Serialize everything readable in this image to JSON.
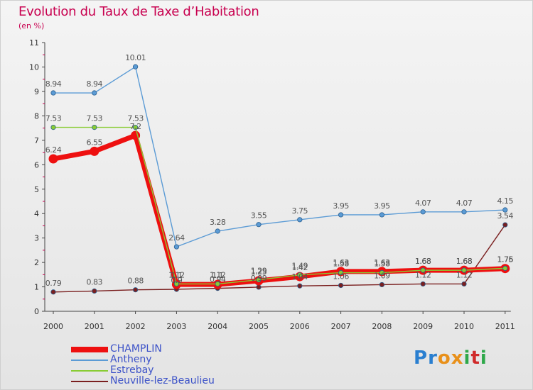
{
  "title": "Evolution du Taux de Taxe d’Habitation",
  "unit": "(en %)",
  "logo": {
    "letters": [
      "P",
      "r",
      "o",
      "x",
      "i",
      "t",
      "i"
    ],
    "colors": [
      "#2a7fd0",
      "#2a7fd0",
      "#e8901a",
      "#e8901a",
      "#2ea84a",
      "#d02a2a",
      "#2ea84a"
    ]
  },
  "chart_data": {
    "type": "line",
    "title": "Evolution du Taux de Taxe d’Habitation",
    "ylabel": "(en %)",
    "xlabel": "",
    "x": [
      "2000",
      "2001",
      "2002",
      "2003",
      "2004",
      "2005",
      "2006",
      "2007",
      "2008",
      "2009",
      "2010",
      "2011"
    ],
    "ylim": [
      0,
      11
    ],
    "yticks": [
      "0",
      "1",
      "2",
      "3",
      "4",
      "5",
      "6",
      "7",
      "8",
      "9",
      "10",
      "11"
    ],
    "grid": false,
    "legend_position": "bottom-left",
    "series": [
      {
        "name": "CHAMPLIN",
        "color": "#ee1010",
        "values": [
          6.24,
          6.55,
          7.2,
          1.1,
          1.1,
          1.25,
          1.42,
          1.63,
          1.63,
          1.68,
          1.68,
          1.75
        ],
        "labels": [
          "6.24",
          "6.55",
          "7.2",
          "1.1",
          "1.1",
          "1.25",
          "1.42",
          "1.63",
          "1.63",
          "1.68",
          "1.68",
          "1.75"
        ]
      },
      {
        "name": "Antheny",
        "color": "#5b9bd5",
        "values": [
          8.94,
          8.94,
          10.01,
          2.64,
          3.28,
          3.55,
          3.75,
          3.95,
          3.95,
          4.07,
          4.07,
          4.15
        ],
        "labels": [
          "8.94",
          "8.94",
          "10.01",
          "2.64",
          "3.28",
          "3.55",
          "3.75",
          "3.95",
          "3.95",
          "4.07",
          "4.07",
          "4.15"
        ]
      },
      {
        "name": "Estrebay",
        "color": "#88cc33",
        "values": [
          7.53,
          7.53,
          7.53,
          1.12,
          1.12,
          1.29,
          1.49,
          1.58,
          1.58,
          1.68,
          1.68,
          1.76
        ],
        "labels": [
          "7.53",
          "7.53",
          "7.53",
          "1.12",
          "1.12",
          "1.29",
          "1.49",
          "1.58",
          "1.58",
          "1.68",
          "1.68",
          "1.76"
        ]
      },
      {
        "name": "Neuville-lez-Beaulieu",
        "color": "#7a1f1f",
        "values": [
          0.79,
          0.83,
          0.88,
          0.9,
          0.94,
          0.99,
          1.04,
          1.06,
          1.09,
          1.12,
          1.12,
          3.54
        ],
        "labels": [
          "0.79",
          "0.83",
          "0.88",
          "0.9",
          "0.94",
          "0.99",
          "1.04",
          "1.06",
          "1.09",
          "1.12",
          "1.12",
          "3.54"
        ]
      }
    ]
  },
  "legend": [
    {
      "label": "CHAMPLIN",
      "color": "#ee1010"
    },
    {
      "label": "Antheny",
      "color": "#5b9bd5"
    },
    {
      "label": "Estrebay",
      "color": "#88cc33"
    },
    {
      "label": "Neuville-lez-Beaulieu",
      "color": "#7a1f1f"
    }
  ]
}
